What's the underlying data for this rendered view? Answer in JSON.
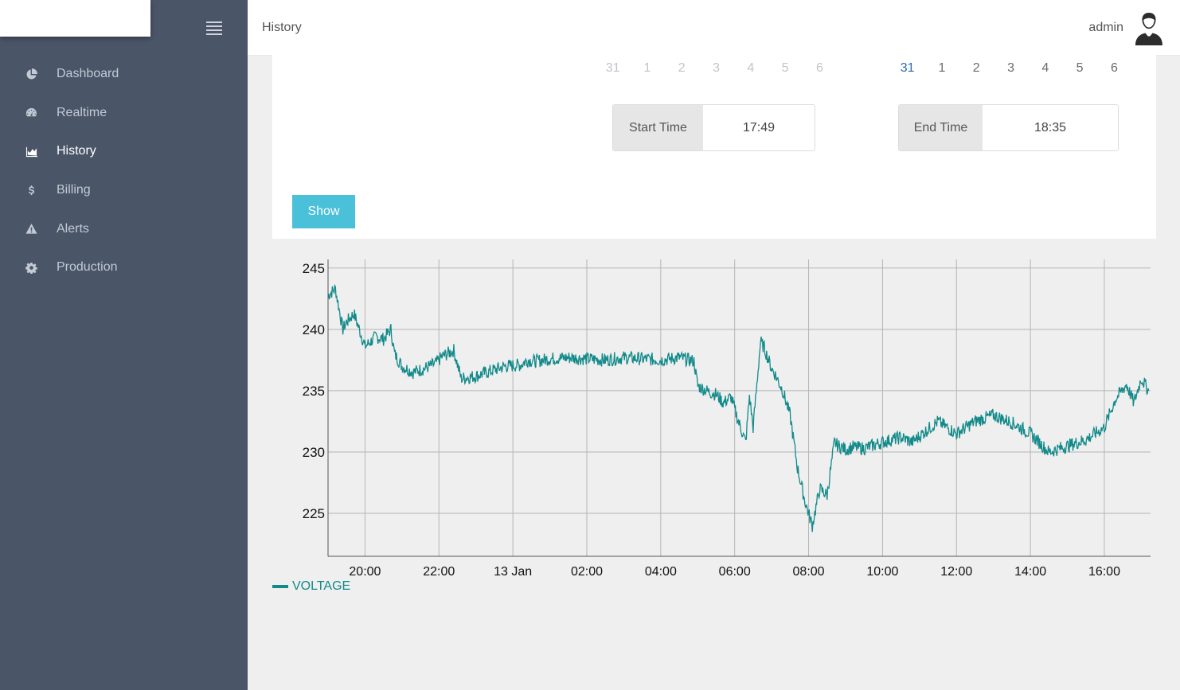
{
  "sidebar": {
    "items": [
      {
        "label": "Dashboard",
        "icon": "pie-chart-icon",
        "active": false
      },
      {
        "label": "Realtime",
        "icon": "dashboard-gauge-icon",
        "active": false
      },
      {
        "label": "History",
        "icon": "area-chart-icon",
        "active": true
      },
      {
        "label": "Billing",
        "icon": "dollar-icon",
        "active": false
      },
      {
        "label": "Alerts",
        "icon": "warning-icon",
        "active": false
      },
      {
        "label": "Production",
        "icon": "gear-icon",
        "active": false
      }
    ]
  },
  "header": {
    "title": "History",
    "user": "admin"
  },
  "filters": {
    "start_calendar_days": [
      "31",
      "1",
      "2",
      "3",
      "4",
      "5",
      "6"
    ],
    "end_calendar_days": [
      "31",
      "1",
      "2",
      "3",
      "4",
      "5",
      "6"
    ],
    "end_selected_day": "31",
    "start_time_label": "Start Time",
    "start_time_value": "17:49",
    "end_time_label": "End Time",
    "end_time_value": "18:35",
    "show_label": "Show"
  },
  "colors": {
    "sidebar_bg": "#4a5568",
    "series": "#138a8a",
    "button": "#4bc0d9",
    "plot_bg": "#efefef"
  },
  "chart_data": {
    "type": "line",
    "title": "",
    "xlabel": "",
    "ylabel": "",
    "ylim": [
      221.5,
      245.7
    ],
    "xlim_hours": [
      19.0,
      41.25
    ],
    "x_ticks": [
      {
        "label": "20:00",
        "hour": 20
      },
      {
        "label": "22:00",
        "hour": 22
      },
      {
        "label": "13 Jan",
        "hour": 24
      },
      {
        "label": "02:00",
        "hour": 26
      },
      {
        "label": "04:00",
        "hour": 28
      },
      {
        "label": "06:00",
        "hour": 30
      },
      {
        "label": "08:00",
        "hour": 32
      },
      {
        "label": "10:00",
        "hour": 34
      },
      {
        "label": "12:00",
        "hour": 36
      },
      {
        "label": "14:00",
        "hour": 38
      },
      {
        "label": "16:00",
        "hour": 40
      }
    ],
    "y_ticks": [
      225,
      230,
      235,
      240,
      245
    ],
    "grid": true,
    "legend_position": "bottom-left",
    "series": [
      {
        "name": "VOLTAGE",
        "x_hours": [
          19.0,
          19.2,
          19.4,
          19.5,
          19.7,
          20.0,
          20.3,
          20.5,
          20.7,
          20.8,
          21.0,
          21.3,
          21.6,
          21.9,
          22.1,
          22.4,
          22.6,
          23.0,
          23.4,
          23.8,
          24.2,
          24.4,
          24.6,
          25.0,
          25.5,
          26.0,
          26.5,
          27.0,
          27.5,
          28.0,
          28.5,
          28.9,
          29.0,
          29.3,
          29.5,
          29.7,
          29.9,
          30.1,
          30.3,
          30.4,
          30.5,
          30.7,
          30.8,
          31.0,
          31.1,
          31.3,
          31.5,
          31.7,
          31.9,
          32.1,
          32.3,
          32.5,
          32.7,
          32.8,
          32.9,
          33.0,
          33.2,
          33.5,
          34.0,
          34.5,
          34.8,
          35.0,
          35.5,
          36.0,
          36.5,
          37.0,
          37.5,
          38.0,
          38.5,
          39.0,
          39.5,
          40.0,
          40.3,
          40.6,
          40.8,
          41.0,
          41.2
        ],
        "values": [
          242.8,
          243.3,
          240.0,
          240.6,
          241.3,
          238.6,
          239.4,
          239.2,
          240.0,
          238.0,
          237.0,
          236.5,
          236.8,
          237.2,
          237.8,
          238.3,
          236.0,
          236.2,
          236.6,
          237.0,
          237.1,
          237.5,
          237.4,
          237.6,
          237.7,
          237.6,
          237.5,
          237.7,
          237.6,
          237.5,
          237.7,
          237.4,
          235.4,
          234.9,
          234.7,
          234.0,
          234.5,
          232.5,
          230.8,
          234.6,
          232.0,
          239.0,
          238.5,
          236.8,
          236.3,
          235.0,
          233.0,
          228.7,
          226.0,
          224.0,
          227.0,
          226.5,
          230.8,
          230.5,
          230.4,
          230.2,
          230.4,
          230.3,
          230.8,
          231.2,
          230.8,
          231.3,
          232.5,
          231.5,
          232.5,
          233.0,
          232.4,
          231.5,
          230.0,
          230.5,
          231.0,
          232.0,
          234.3,
          235.5,
          234.0,
          236.0,
          235.0
        ]
      }
    ]
  }
}
